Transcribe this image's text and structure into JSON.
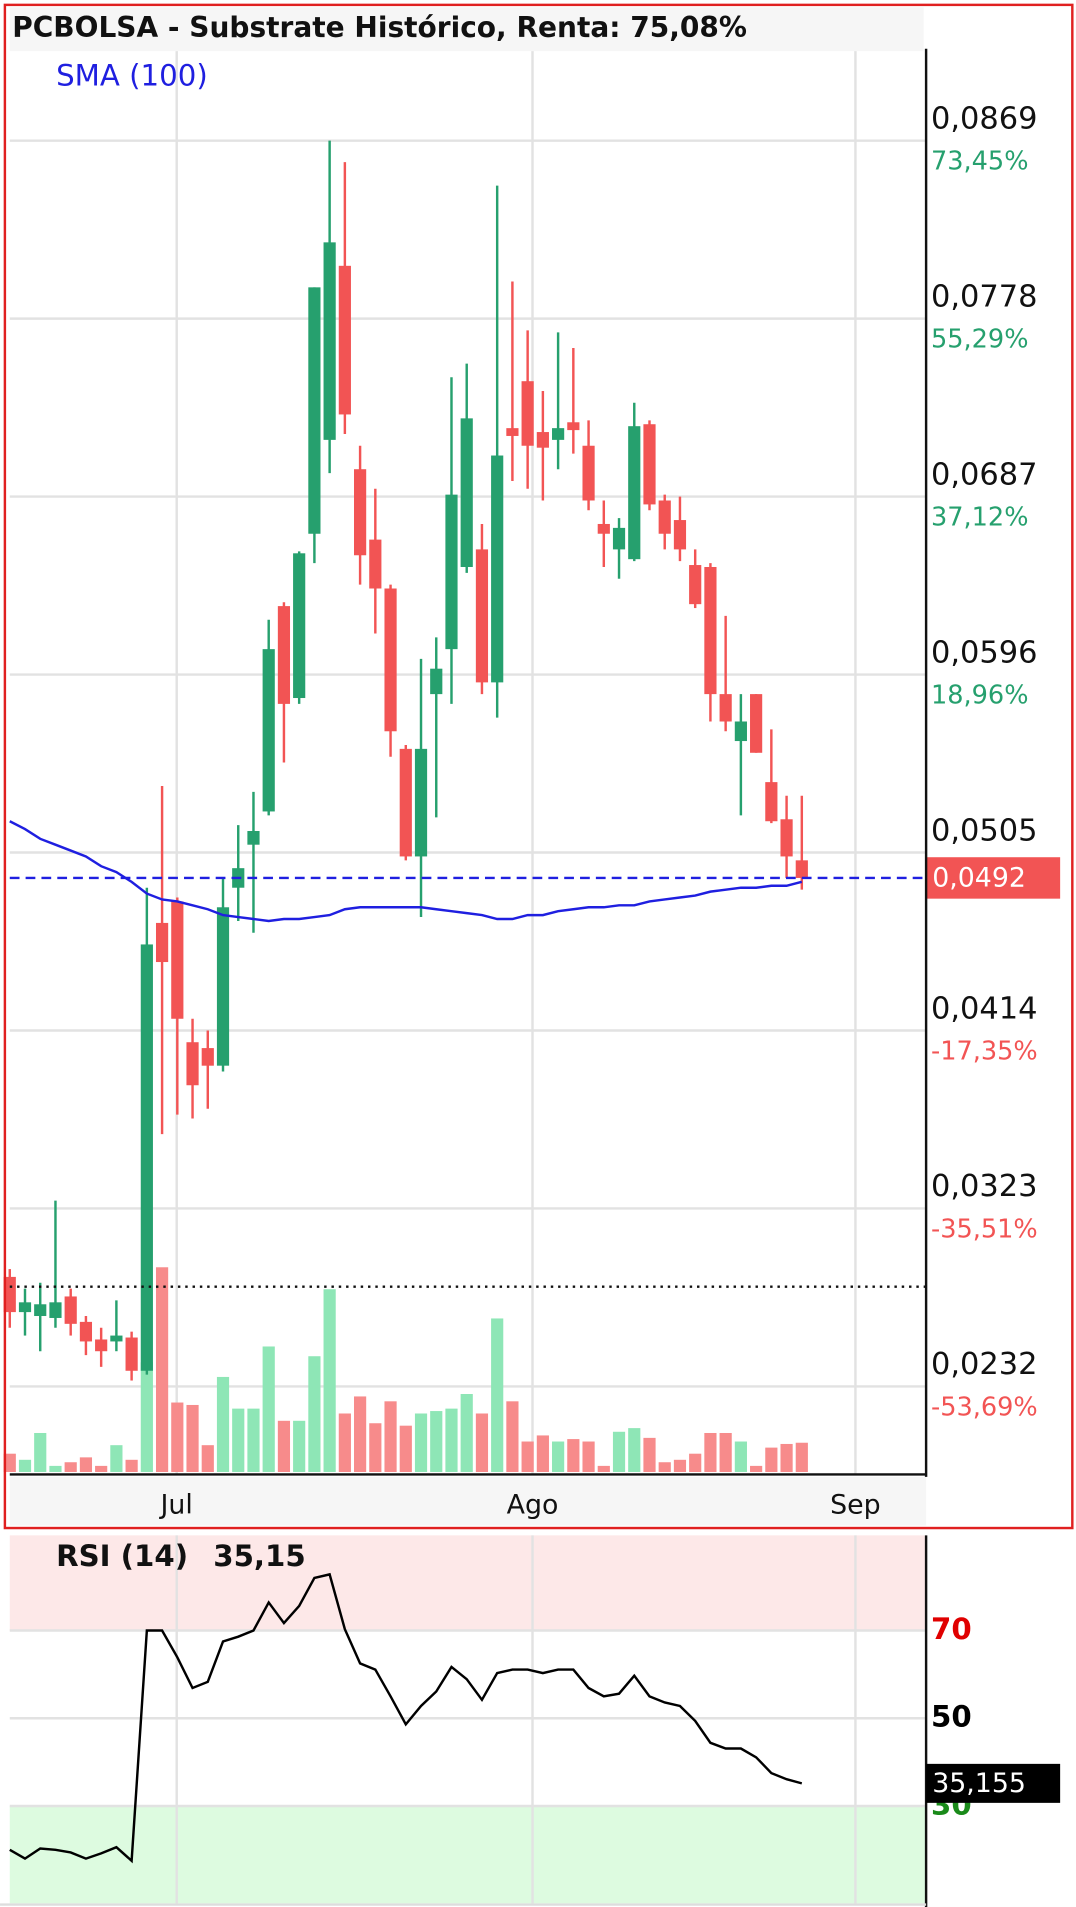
{
  "chart_data": [
    {
      "type": "candlestick",
      "title": "PCBOLSA - Substrate Histórico, Renta: 75,08%",
      "categories": [
        null,
        null,
        null,
        null,
        null,
        null,
        null,
        null,
        null,
        null,
        null,
        null,
        null,
        null,
        null,
        null,
        null,
        null,
        null,
        null,
        null,
        null,
        null,
        null,
        null,
        null,
        null,
        null,
        null,
        null,
        null,
        null,
        null,
        null,
        null,
        null,
        null,
        null,
        null,
        null,
        null,
        null,
        null,
        null,
        null,
        null,
        null,
        null,
        null,
        null,
        null,
        null,
        null
      ],
      "xlim": [
        0,
        60.16
      ],
      "xticks": [
        {
          "value": 10.96,
          "label": "Jul"
        },
        {
          "value": 34.32,
          "label": "Ago"
        },
        {
          "value": 55.52,
          "label": "Sep"
        }
      ],
      "ylim": [
        0.0187,
        0.0916
      ],
      "yticks": [
        {
          "value": 0.0869,
          "label": "0,0869"
        },
        {
          "value": 0.0778,
          "label": "0,0778"
        },
        {
          "value": 0.0687,
          "label": "0,0687"
        },
        {
          "value": 0.0596,
          "label": "0,0596"
        },
        {
          "value": 0.0505,
          "label": "0,0505"
        },
        {
          "value": 0.0414,
          "label": "0,0414"
        },
        {
          "value": 0.0323,
          "label": "0,0323"
        },
        {
          "value": 0.0232,
          "label": "0,0232"
        }
      ],
      "ytick_percent_labels": [
        "73,45%",
        "55,29%",
        "37,12%",
        "18,96%",
        null,
        "-17,35%",
        "-35,51%",
        "-53,69%"
      ],
      "open": [
        0.0288,
        0.027,
        0.0268,
        0.0267,
        0.0278,
        0.0265,
        0.0256,
        0.0255,
        0.0257,
        0.024,
        0.0469,
        0.048,
        0.0408,
        0.0405,
        0.0396,
        0.0487,
        0.0509,
        0.0526,
        0.0631,
        0.0584,
        0.0668,
        0.0716,
        0.0805,
        0.0701,
        0.0665,
        0.064,
        0.0558,
        0.0503,
        0.0586,
        0.0609,
        0.0651,
        0.066,
        0.0592,
        0.0722,
        0.0746,
        0.072,
        0.0716,
        0.0725,
        0.0713,
        0.0673,
        0.066,
        0.0655,
        0.0724,
        0.0685,
        0.0675,
        0.0652,
        0.0651,
        0.0586,
        0.0562,
        0.0586,
        0.0541,
        0.0522,
        0.0501
      ],
      "high": [
        0.0292,
        0.0282,
        0.0285,
        0.0327,
        0.0282,
        0.0268,
        0.0262,
        0.0276,
        0.026,
        0.0487,
        0.0539,
        0.0482,
        0.042,
        0.0414,
        0.0492,
        0.0519,
        0.0536,
        0.0624,
        0.0633,
        0.0659,
        0.0794,
        0.0869,
        0.0858,
        0.0713,
        0.0691,
        0.0642,
        0.056,
        0.0604,
        0.0615,
        0.0748,
        0.0755,
        0.0673,
        0.0846,
        0.0797,
        0.0772,
        0.0741,
        0.0771,
        0.0763,
        0.0726,
        0.0685,
        0.0676,
        0.0735,
        0.0726,
        0.0688,
        0.0687,
        0.066,
        0.0653,
        0.0626,
        0.0586,
        0.0586,
        0.0568,
        0.0534,
        0.0534
      ],
      "low": [
        0.0262,
        0.0258,
        0.025,
        0.0262,
        0.0258,
        0.0248,
        0.0242,
        0.025,
        0.0235,
        0.0238,
        0.0361,
        0.0371,
        0.0369,
        0.0374,
        0.0393,
        0.047,
        0.0464,
        0.0524,
        0.0551,
        0.0581,
        0.0653,
        0.0699,
        0.0719,
        0.0642,
        0.0617,
        0.0554,
        0.0501,
        0.0472,
        0.0523,
        0.0581,
        0.0648,
        0.0586,
        0.0574,
        0.0695,
        0.0691,
        0.0685,
        0.0701,
        0.0709,
        0.068,
        0.0651,
        0.0645,
        0.0654,
        0.068,
        0.066,
        0.0654,
        0.063,
        0.0572,
        0.0567,
        0.0524,
        0.0556,
        0.052,
        0.0492,
        0.0486
      ],
      "close": [
        0.027,
        0.0275,
        0.0274,
        0.0275,
        0.0264,
        0.0255,
        0.025,
        0.0258,
        0.024,
        0.0458,
        0.0449,
        0.042,
        0.0386,
        0.0396,
        0.0477,
        0.0497,
        0.0516,
        0.0609,
        0.0581,
        0.0658,
        0.0794,
        0.0817,
        0.0729,
        0.0657,
        0.064,
        0.0567,
        0.0503,
        0.0558,
        0.0599,
        0.0688,
        0.0727,
        0.0592,
        0.0708,
        0.0718,
        0.0713,
        0.0712,
        0.0722,
        0.0721,
        0.0685,
        0.0668,
        0.0671,
        0.0723,
        0.0683,
        0.0668,
        0.066,
        0.0632,
        0.0586,
        0.0572,
        0.0572,
        0.0556,
        0.0521,
        0.0503,
        0.0492
      ],
      "up_color": "#26a06e",
      "down_color": "#f25454",
      "volume": [
        15,
        10,
        32,
        5,
        8,
        12,
        5,
        22,
        10,
        90,
        168,
        57,
        55,
        22,
        78,
        52,
        52,
        103,
        42,
        42,
        95,
        150,
        48,
        62,
        40,
        58,
        38,
        48,
        50,
        52,
        64,
        48,
        126,
        58,
        25,
        30,
        25,
        27,
        25,
        5,
        33,
        36,
        28,
        8,
        10,
        15,
        32,
        32,
        25,
        5,
        20,
        23,
        24
      ],
      "volume_lim": [
        0,
        300
      ],
      "volume_up_color": "#8ee6b6",
      "volume_down_color": "#f78b8b",
      "sma": {
        "name": "SMA (100)",
        "color": "#1f1fe0",
        "values": [
          0.0521,
          0.0517,
          0.0512,
          0.0509,
          0.0506,
          0.0503,
          0.0498,
          0.0495,
          0.049,
          0.0484,
          0.0481,
          0.048,
          0.0478,
          0.0476,
          0.0473,
          0.0472,
          0.0471,
          0.047,
          0.0471,
          0.0471,
          0.0472,
          0.0473,
          0.0476,
          0.0477,
          0.0477,
          0.0477,
          0.0477,
          0.0477,
          0.0476,
          0.0475,
          0.0474,
          0.0473,
          0.0471,
          0.0471,
          0.0473,
          0.0473,
          0.0475,
          0.0476,
          0.0477,
          0.0477,
          0.0478,
          0.0478,
          0.048,
          0.0481,
          0.0482,
          0.0483,
          0.0485,
          0.0486,
          0.0487,
          0.0487,
          0.0488,
          0.0488,
          0.049
        ]
      },
      "current_price": {
        "value": 0.0492,
        "label": "0,0492"
      },
      "reference_line": 0.0283,
      "grid": true
    },
    {
      "type": "line",
      "title": "RSI (14)",
      "last_value": {
        "value": 35.15,
        "label": "35,15"
      },
      "marker": {
        "value": 35.155,
        "label": "35,155"
      },
      "values": [
        20,
        18,
        20.3,
        20,
        19.4,
        18,
        19.2,
        20.6,
        17.5,
        70,
        70,
        63.9,
        56.9,
        58.3,
        67.5,
        68.6,
        70,
        76.4,
        71.7,
        75.6,
        82,
        82.8,
        70.3,
        62.5,
        61.1,
        55,
        48.6,
        52.8,
        56.1,
        61.7,
        58.9,
        54.2,
        60.3,
        61.1,
        61.1,
        60.3,
        61.1,
        61.1,
        56.9,
        55,
        55.6,
        59.7,
        55,
        53.6,
        52.8,
        49.4,
        44.4,
        43.1,
        43.1,
        41.1,
        37.5,
        36.1,
        35.15
      ],
      "color": "#000000",
      "ylim": [
        7.8,
        91.7
      ],
      "yticks": [
        30,
        50,
        70
      ],
      "ytick_colors": [
        "#1a8a1a",
        "#000000",
        "#e00000"
      ],
      "upper_zone_color": "#fde8e8",
      "lower_zone_color": "#ddfbe0",
      "grid": true
    }
  ]
}
